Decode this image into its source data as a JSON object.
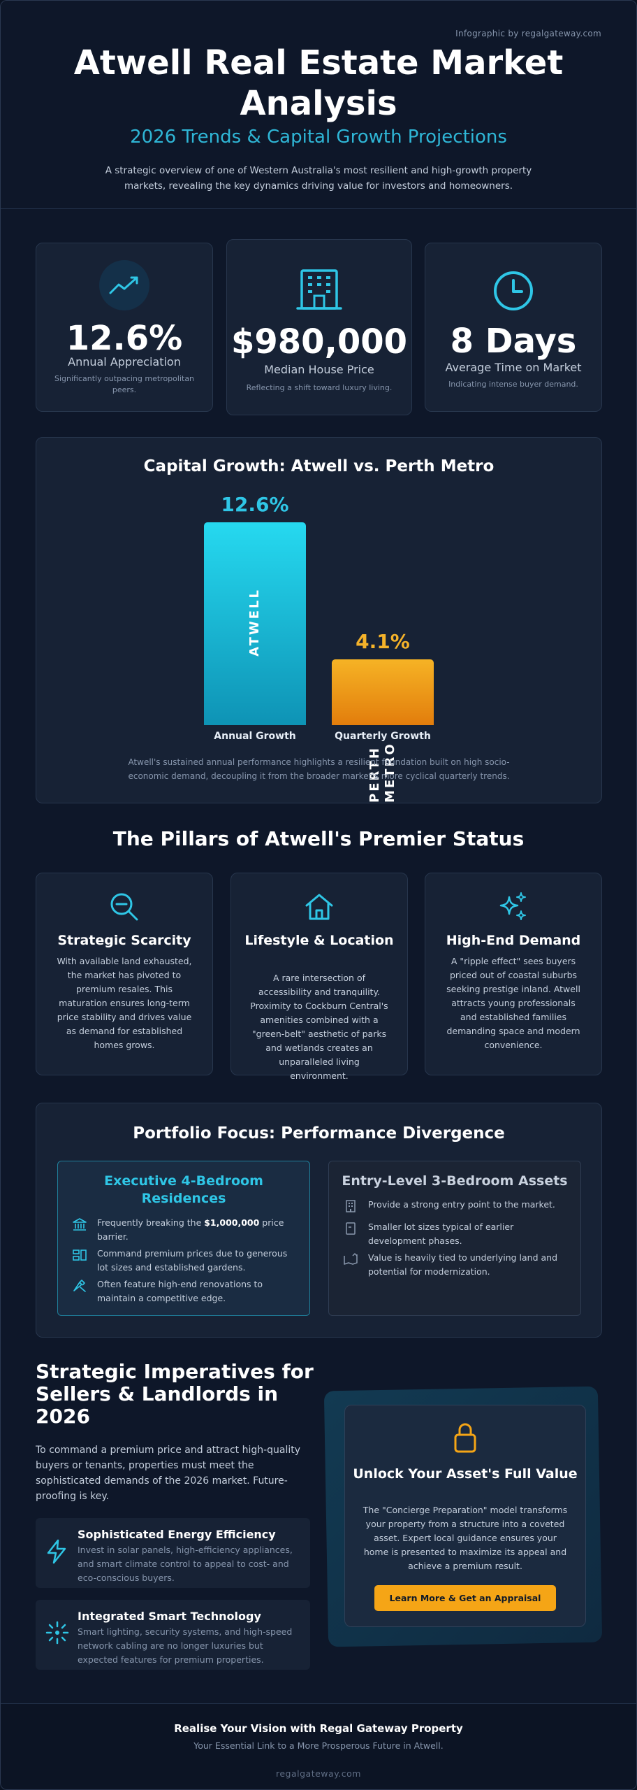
{
  "header": {
    "credit": "Infographic by regalgateway.com",
    "title": "Atwell Real Estate Market Analysis",
    "subtitle": "2026 Trends & Capital Growth Projections",
    "intro": "A strategic overview of one of Western Australia's most resilient and high-growth property markets, revealing the key dynamics driving value for investors and homeowners."
  },
  "stats": [
    {
      "value": "12.6%",
      "label": "Annual Appreciation",
      "note": "Significantly outpacing metropolitan peers.",
      "icon": "trending-up-icon"
    },
    {
      "value": "$980,000",
      "label": "Median House Price",
      "note": "Reflecting a shift toward luxury living.",
      "icon": "building-icon"
    },
    {
      "value": "8 Days",
      "label": "Average Time on Market",
      "note": "Indicating intense buyer demand.",
      "icon": "clock-icon"
    }
  ],
  "chart": {
    "title": "Capital Growth: Atwell vs. Perth Metro",
    "note": "Atwell's sustained annual performance highlights a resilient foundation built on high socio-economic demand, decoupling it from the broader market's more cyclical quarterly trends."
  },
  "chart_data": {
    "type": "bar",
    "title": "Capital Growth: Atwell vs. Perth Metro",
    "categories": [
      "Annual Growth",
      "Quarterly Growth"
    ],
    "values": [
      12.6,
      4.1
    ],
    "value_labels": [
      "12.6%",
      "4.1%"
    ],
    "bar_names": [
      "ATWELL",
      "PERTH METRO"
    ],
    "colors": [
      "#22c8e5",
      "#f5a516"
    ],
    "ylim": [
      0,
      12.6
    ],
    "grid": false
  },
  "pillars": {
    "title": "The Pillars of Atwell's Premier Status",
    "items": [
      {
        "title": "Strategic Scarcity",
        "text": "With available land exhausted, the market has pivoted to premium resales. This maturation ensures long-term price stability and drives value as demand for established homes grows.",
        "icon": "search-minus-icon"
      },
      {
        "title": "Lifestyle & Location",
        "text": "A rare intersection of accessibility and tranquility. Proximity to Cockburn Central's amenities combined with a \"green-belt\" aesthetic of parks and wetlands creates an unparalleled living environment.",
        "icon": "home-icon"
      },
      {
        "title": "High-End Demand",
        "text": "A \"ripple effect\" sees buyers priced out of coastal suburbs seeking prestige inland. Atwell attracts young professionals and established families demanding space and modern convenience.",
        "icon": "sparkles-icon"
      }
    ]
  },
  "portfolio": {
    "title": "Portfolio Focus: Performance Divergence",
    "executive": {
      "title": "Executive 4-Bedroom Residences",
      "bullets": [
        {
          "pre": "Frequently breaking the ",
          "bold": "$1,000,000",
          "post": " price barrier.",
          "icon": "bank-icon"
        },
        {
          "pre": "Command premium prices due to generous lot sizes and established gardens.",
          "bold": "",
          "post": "",
          "icon": "layout-icon"
        },
        {
          "pre": "Often feature high-end renovations to maintain a competitive edge.",
          "bold": "",
          "post": "",
          "icon": "tools-icon"
        }
      ]
    },
    "entry": {
      "title": "Entry-Level 3-Bedroom Assets",
      "bullets": [
        {
          "text": "Provide a strong entry point to the market.",
          "icon": "building-small-icon"
        },
        {
          "text": "Smaller lot sizes typical of earlier development phases.",
          "icon": "document-icon"
        },
        {
          "text": "Value is heavily tied to underlying land and potential for modernization.",
          "icon": "map-icon"
        }
      ]
    }
  },
  "imperatives": {
    "title": "Strategic Imperatives for Sellers & Landlords in 2026",
    "text": "To command a premium price and attract high-quality buyers or tenants, properties must meet the sophisticated demands of the 2026 market. Future-proofing is key.",
    "features": [
      {
        "title": "Sophisticated Energy Efficiency",
        "text": "Invest in solar panels, high-efficiency appliances, and smart climate control to appeal to cost- and eco-conscious buyers.",
        "icon": "lightning-icon"
      },
      {
        "title": "Integrated Smart Technology",
        "text": "Smart lighting, security systems, and high-speed network cabling are no longer luxuries but expected features for premium properties.",
        "icon": "network-icon"
      }
    ]
  },
  "cta": {
    "title": "Unlock Your Asset's Full Value",
    "text": "The \"Concierge Preparation\" model transforms your property from a structure into a coveted asset. Expert local guidance ensures your home is presented to maximize its appeal and achieve a premium result.",
    "button": "Learn More & Get an Appraisal",
    "icon": "lock-icon"
  },
  "footer": {
    "title": "Realise Your Vision with Regal Gateway Property",
    "subtitle": "Your Essential Link to a More Prosperous Future in Atwell.",
    "link": "regalgateway.com"
  }
}
